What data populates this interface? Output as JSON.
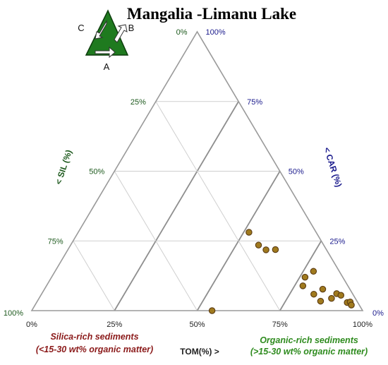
{
  "chart_data": {
    "type": "scatter",
    "subtype": "ternary",
    "title": "Mangalia -Limanu Lake",
    "axes": {
      "tom": {
        "label": "TOM(%) >",
        "ticks": [
          "0%",
          "25%",
          "50%",
          "75%",
          "100%"
        ],
        "color": "#222222"
      },
      "sil": {
        "label": "< SIL (%)",
        "ticks": [
          "0%",
          "25%",
          "50%",
          "75%",
          "100%"
        ],
        "color": "#1e5a1e"
      },
      "car": {
        "label": "< CAR (%)",
        "ticks": [
          "100%",
          "75%",
          "50%",
          "25%",
          "0%"
        ],
        "color": "#1a1a8c"
      }
    },
    "grid": true,
    "gridlines": [
      25,
      50,
      75
    ],
    "legend_letters": [
      "A",
      "B",
      "C"
    ],
    "marker_color": "#a07a1e",
    "points": [
      {
        "tom": 54.5,
        "sil": 45.5,
        "car": 0
      },
      {
        "tom": 51.6,
        "sil": 20.3,
        "car": 28.1
      },
      {
        "tom": 56.8,
        "sil": 19.7,
        "car": 23.5
      },
      {
        "tom": 59.9,
        "sil": 18.3,
        "car": 21.8
      },
      {
        "tom": 62.7,
        "sil": 15.4,
        "car": 21.9
      },
      {
        "tom": 77.5,
        "sil": 13.6,
        "car": 8.9
      },
      {
        "tom": 76.6,
        "sil": 11.4,
        "car": 12.0
      },
      {
        "tom": 78.1,
        "sil": 7.8,
        "car": 14.1
      },
      {
        "tom": 82.3,
        "sil": 11.8,
        "car": 5.9
      },
      {
        "tom": 84.1,
        "sil": 8.2,
        "car": 7.7
      },
      {
        "tom": 85.6,
        "sil": 11.0,
        "car": 3.4
      },
      {
        "tom": 88.4,
        "sil": 7.2,
        "car": 4.4
      },
      {
        "tom": 89.1,
        "sil": 4.8,
        "car": 6.1
      },
      {
        "tom": 90.7,
        "sil": 3.8,
        "car": 5.5
      },
      {
        "tom": 93.9,
        "sil": 3.2,
        "car": 2.9
      },
      {
        "tom": 94.7,
        "sil": 2.2,
        "car": 3.1
      },
      {
        "tom": 95.6,
        "sil": 2.4,
        "car": 2.0
      }
    ],
    "annotations": [
      {
        "line1": "Silica-rich sediments",
        "line2": "(<15-30 wt% organic matter)",
        "color": "#8b1a1a"
      },
      {
        "line1": "Organic-rich sediments",
        "line2": "(>15-30 wt% organic matter)",
        "color": "#2e8b1e"
      }
    ]
  }
}
